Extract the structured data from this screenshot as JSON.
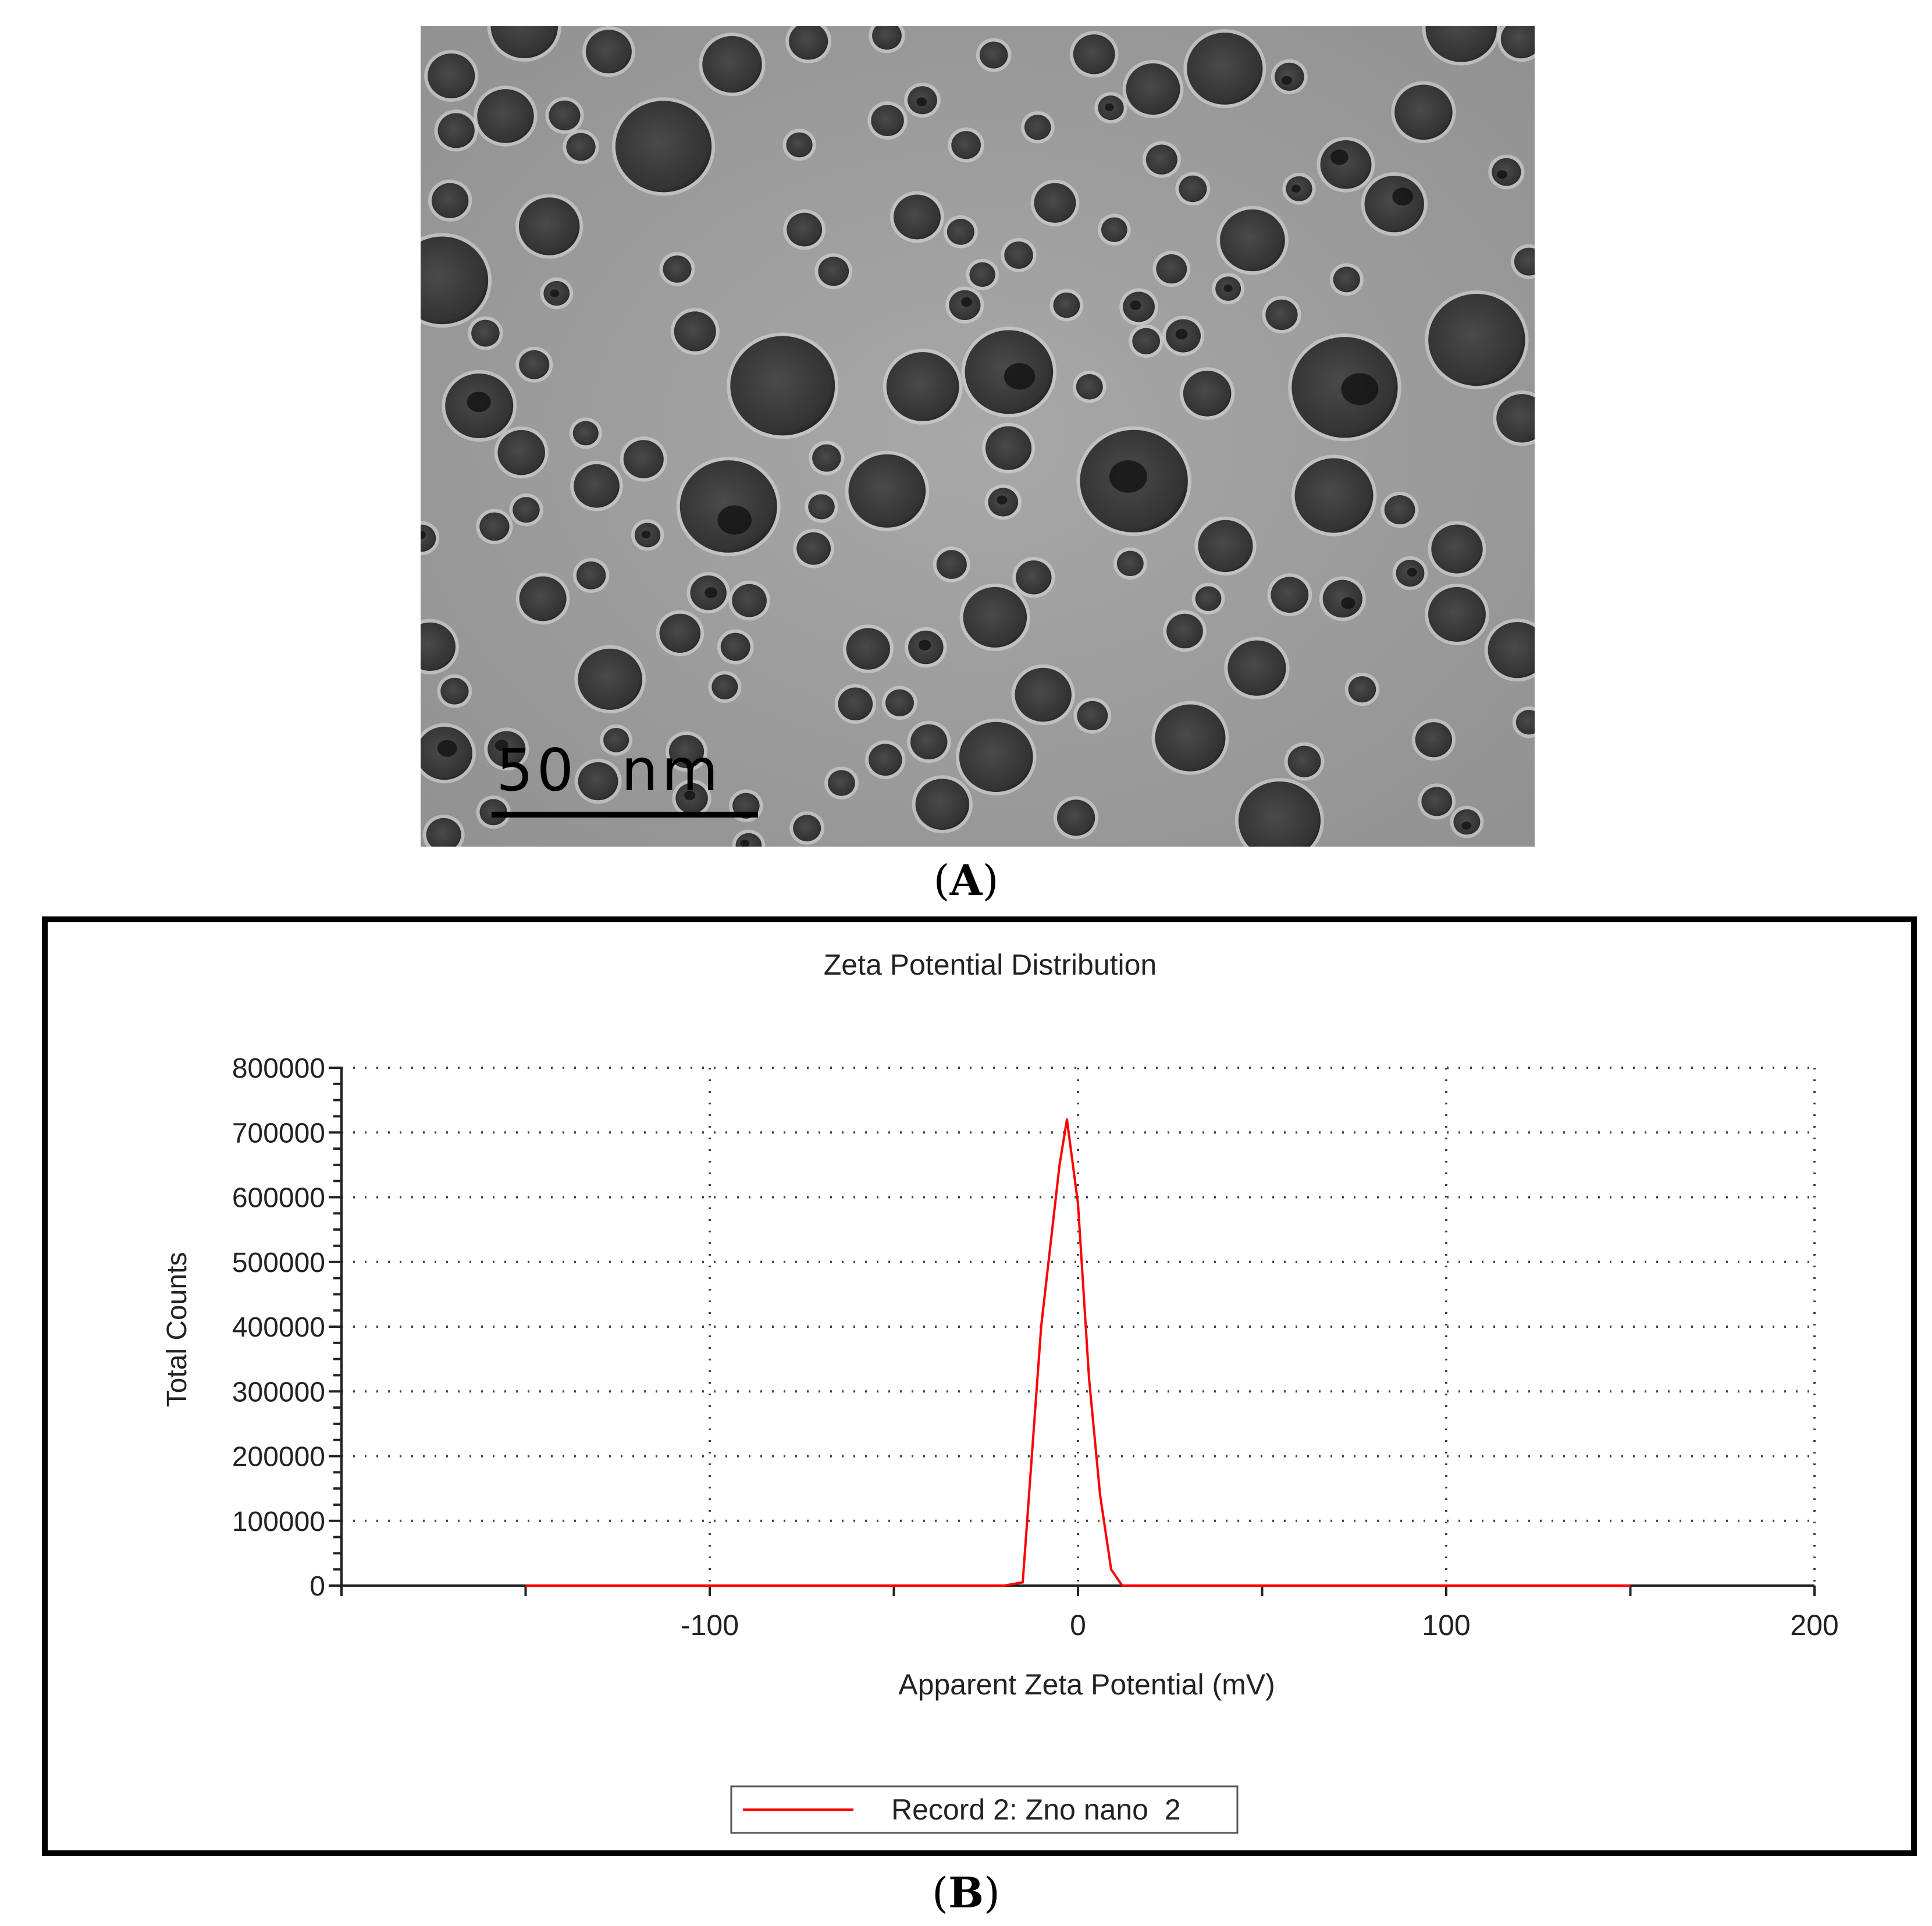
{
  "figure": {
    "panel_a_label": "A",
    "panel_b_label": "B"
  },
  "micrograph": {
    "scale_bar_label": "50  nm"
  },
  "chart_data": {
    "type": "line",
    "title": "Zeta Potential Distribution",
    "xlabel": "Apparent Zeta Potential (mV)",
    "ylabel": "Total Counts",
    "xlim": [
      -200,
      200
    ],
    "ylim": [
      0,
      800000
    ],
    "xticks": [
      -100,
      0,
      100,
      200
    ],
    "yticks": [
      0,
      100000,
      200000,
      300000,
      400000,
      500000,
      600000,
      700000,
      800000
    ],
    "grid": true,
    "legend_position": "bottom-center",
    "series": [
      {
        "name": "Record 2: Zno nano  2",
        "color": "#ff0000",
        "x": [
          -150,
          -20,
          -15,
          -10,
          -5,
          -3,
          0,
          3,
          6,
          9,
          12,
          20,
          150
        ],
        "y": [
          0,
          0,
          5000,
          400000,
          650000,
          720000,
          590000,
          320000,
          140000,
          25000,
          0,
          0,
          0
        ]
      }
    ]
  }
}
